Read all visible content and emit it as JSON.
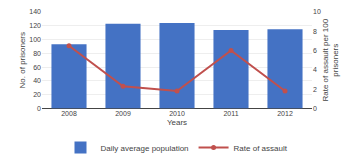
{
  "chart_data": {
    "type": "bar",
    "categories": [
      "2008",
      "2009",
      "2010",
      "2011",
      "2012"
    ],
    "xlabel": "Years",
    "ylabel": "No. of prisoners",
    "y2label": "Rate of assault per 100\nprisoners",
    "series": [
      {
        "name": "Daily average population",
        "type": "bar",
        "color": "#4472C4",
        "values": [
          93,
          123,
          124,
          114,
          115
        ]
      },
      {
        "name": "Rate of assault",
        "type": "line",
        "color": "#C0504D",
        "marker": "circle",
        "axis": "y2",
        "values": [
          6.5,
          2.3,
          1.8,
          6.0,
          1.8
        ]
      }
    ],
    "ylim": [
      0,
      140
    ],
    "yticks": [
      0,
      20,
      40,
      60,
      80,
      100,
      120,
      140
    ],
    "y2lim": [
      0,
      10
    ],
    "y2ticks": [
      0,
      2,
      4,
      6,
      8,
      10
    ],
    "grid": true,
    "legend": "bottom"
  }
}
